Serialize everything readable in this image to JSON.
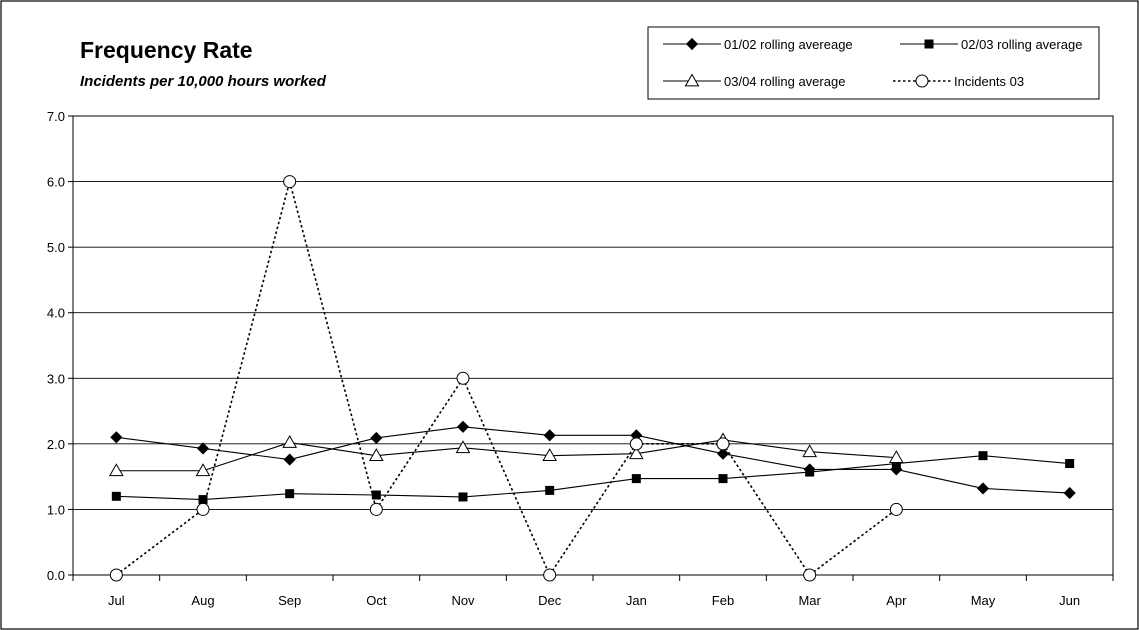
{
  "chart_data": {
    "type": "line",
    "title": "Frequency Rate",
    "subtitle": "Incidents per 10,000 hours worked",
    "xlabel": "",
    "ylabel": "",
    "categories": [
      "Jul",
      "Aug",
      "Sep",
      "Oct",
      "Nov",
      "Dec",
      "Jan",
      "Feb",
      "Mar",
      "Apr",
      "May",
      "Jun"
    ],
    "ylim": [
      0,
      7
    ],
    "yticks": [
      "0.0",
      "1.0",
      "2.0",
      "3.0",
      "4.0",
      "5.0",
      "6.0",
      "7.0"
    ],
    "grid": "horizontal",
    "legend_position": "top-right",
    "series": [
      {
        "name": "01/02 rolling avereage",
        "marker": "diamond",
        "line": "solid",
        "color": "#000000",
        "values": [
          2.1,
          1.93,
          1.76,
          2.09,
          2.26,
          2.13,
          2.13,
          1.85,
          1.61,
          1.61,
          1.32,
          1.25
        ]
      },
      {
        "name": "02/03 rolling average",
        "marker": "square",
        "line": "solid",
        "color": "#000000",
        "values": [
          1.2,
          1.15,
          1.24,
          1.22,
          1.19,
          1.29,
          1.47,
          1.47,
          1.57,
          1.7,
          1.82,
          1.7
        ]
      },
      {
        "name": "03/04 rolling average",
        "marker": "triangle",
        "line": "solid",
        "color": "#000000",
        "values": [
          1.59,
          1.59,
          2.02,
          1.82,
          1.94,
          1.82,
          1.85,
          2.06,
          1.88,
          1.79,
          null,
          null
        ]
      },
      {
        "name": "Incidents 03",
        "marker": "circle",
        "line": "dotted",
        "color": "#000000",
        "values": [
          0,
          1,
          6,
          1,
          3,
          0,
          2,
          2,
          0,
          1,
          null,
          null
        ]
      }
    ]
  }
}
